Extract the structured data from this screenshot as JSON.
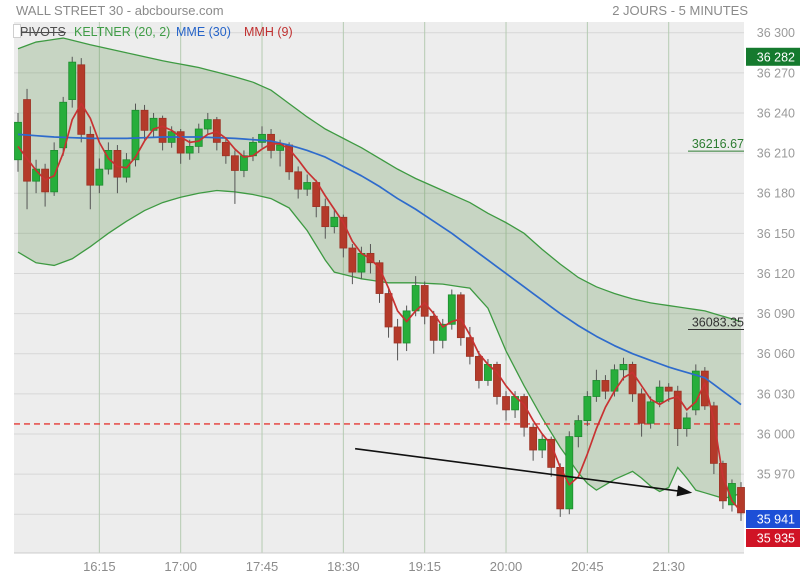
{
  "header": {
    "title": "WALL STREET 30 - abcbourse.com",
    "timeframe": "2 JOURS - 5 MINUTES"
  },
  "indicators": [
    {
      "label": "PIVOTS",
      "color": "#4d4d4d",
      "disabled": true
    },
    {
      "label": "KELTNER (20, 2)",
      "color": "#3f9c46",
      "disabled": false
    },
    {
      "label": "MME (30)",
      "color": "#2664c9",
      "disabled": false
    },
    {
      "label": "MMH (9)",
      "color": "#c03030",
      "disabled": false
    }
  ],
  "chart_data": {
    "type": "candlestick",
    "title": "WALL STREET 30",
    "timeframe_label": "2 JOURS - 5 MINUTES",
    "interval_minutes": 5,
    "ylim": [
      35911,
      36308
    ],
    "y_ticks": [
      36300,
      36270,
      36240,
      36210,
      36180,
      36150,
      36120,
      36090,
      36060,
      36030,
      36000,
      35970
    ],
    "y_tick_labels": [
      "36 300",
      "36 270",
      "36 240",
      "36 210",
      "36 180",
      "36 150",
      "36 120",
      "36 090",
      "36 060",
      "36 030",
      "36 000",
      "35 970"
    ],
    "y_grid_extra": [
      35940
    ],
    "x_ticks": [
      "16:15",
      "17:00",
      "17:45",
      "18:30",
      "19:15",
      "20:00",
      "20:45",
      "21:30"
    ],
    "x_tick_indices": [
      9,
      18,
      27,
      36,
      45,
      54,
      63,
      72
    ],
    "times": [
      "15:30",
      "15:35",
      "15:40",
      "15:45",
      "15:50",
      "15:55",
      "16:00",
      "16:05",
      "16:10",
      "16:15",
      "16:20",
      "16:25",
      "16:30",
      "16:35",
      "16:40",
      "16:45",
      "16:50",
      "16:55",
      "17:00",
      "17:05",
      "17:10",
      "17:15",
      "17:20",
      "17:25",
      "17:30",
      "17:35",
      "17:40",
      "17:45",
      "17:50",
      "17:55",
      "18:00",
      "18:05",
      "18:10",
      "18:15",
      "18:20",
      "18:25",
      "18:30",
      "18:35",
      "18:40",
      "18:45",
      "18:50",
      "18:55",
      "19:00",
      "19:05",
      "19:10",
      "19:15",
      "19:20",
      "19:25",
      "19:30",
      "19:35",
      "19:40",
      "19:45",
      "19:50",
      "19:55",
      "20:00",
      "20:05",
      "20:10",
      "20:15",
      "20:20",
      "20:25",
      "20:30",
      "20:35",
      "20:40",
      "20:45",
      "20:50",
      "20:55",
      "21:00",
      "21:05",
      "21:10",
      "21:15",
      "21:20",
      "21:25",
      "21:30",
      "21:35",
      "21:40",
      "21:45",
      "21:50",
      "21:55",
      "22:00",
      "22:05",
      "22:10"
    ],
    "candles": [
      [
        36205,
        36240,
        36196,
        36233
      ],
      [
        36250,
        36258,
        36168,
        36189
      ],
      [
        36189,
        36205,
        36180,
        36198
      ],
      [
        36198,
        36202,
        36170,
        36181
      ],
      [
        36181,
        36218,
        36178,
        36212
      ],
      [
        36214,
        36252,
        36208,
        36248
      ],
      [
        36250,
        36282,
        36244,
        36278
      ],
      [
        36276,
        36281,
        36218,
        36224
      ],
      [
        36224,
        36230,
        36168,
        36186
      ],
      [
        36186,
        36206,
        36180,
        36198
      ],
      [
        36198,
        36218,
        36194,
        36212
      ],
      [
        36212,
        36216,
        36180,
        36192
      ],
      [
        36192,
        36210,
        36188,
        36205
      ],
      [
        36205,
        36247,
        36200,
        36242
      ],
      [
        36242,
        36246,
        36220,
        36227
      ],
      [
        36227,
        36240,
        36222,
        36236
      ],
      [
        36236,
        36238,
        36212,
        36218
      ],
      [
        36218,
        36230,
        36214,
        36226
      ],
      [
        36226,
        36228,
        36202,
        36210
      ],
      [
        36210,
        36220,
        36205,
        36215
      ],
      [
        36215,
        36232,
        36210,
        36228
      ],
      [
        36228,
        36240,
        36224,
        36235
      ],
      [
        36235,
        36237,
        36212,
        36218
      ],
      [
        36218,
        36222,
        36202,
        36208
      ],
      [
        36208,
        36212,
        36172,
        36197
      ],
      [
        36197,
        36212,
        36192,
        36208
      ],
      [
        36208,
        36222,
        36204,
        36218
      ],
      [
        36218,
        36230,
        36214,
        36224
      ],
      [
        36224,
        36228,
        36206,
        36212
      ],
      [
        36212,
        36220,
        36200,
        36216
      ],
      [
        36216,
        36218,
        36190,
        36196
      ],
      [
        36196,
        36200,
        36176,
        36183
      ],
      [
        36183,
        36194,
        36178,
        36188
      ],
      [
        36188,
        36190,
        36162,
        36170
      ],
      [
        36170,
        36176,
        36146,
        36155
      ],
      [
        36155,
        36168,
        36150,
        36162
      ],
      [
        36162,
        36164,
        36132,
        36139
      ],
      [
        36139,
        36142,
        36112,
        36121
      ],
      [
        36121,
        36140,
        36116,
        36135
      ],
      [
        36135,
        36142,
        36120,
        36128
      ],
      [
        36128,
        36130,
        36098,
        36105
      ],
      [
        36105,
        36110,
        36072,
        36080
      ],
      [
        36080,
        36086,
        36055,
        36068
      ],
      [
        36068,
        36096,
        36062,
        36092
      ],
      [
        36092,
        36118,
        36088,
        36111
      ],
      [
        36111,
        36114,
        36082,
        36088
      ],
      [
        36088,
        36092,
        36060,
        36070
      ],
      [
        36070,
        36086,
        36064,
        36082
      ],
      [
        36082,
        36108,
        36078,
        36104
      ],
      [
        36104,
        36106,
        36066,
        36072
      ],
      [
        36072,
        36080,
        36052,
        36058
      ],
      [
        36058,
        36062,
        36034,
        36040
      ],
      [
        36040,
        36056,
        36036,
        36052
      ],
      [
        36052,
        36054,
        36022,
        36028
      ],
      [
        36028,
        36032,
        36010,
        36018
      ],
      [
        36018,
        36032,
        36012,
        36028
      ],
      [
        36028,
        36030,
        35998,
        36005
      ],
      [
        36005,
        36008,
        35980,
        35988
      ],
      [
        35988,
        36000,
        35982,
        35996
      ],
      [
        35996,
        35998,
        35968,
        35975
      ],
      [
        35975,
        35978,
        35938,
        35944
      ],
      [
        35944,
        36002,
        35940,
        35998
      ],
      [
        35998,
        36014,
        35990,
        36010
      ],
      [
        36010,
        36032,
        36006,
        36028
      ],
      [
        36028,
        36048,
        36024,
        36040
      ],
      [
        36040,
        36044,
        36026,
        36032
      ],
      [
        36032,
        36052,
        36028,
        36048
      ],
      [
        36048,
        36057,
        36040,
        36052
      ],
      [
        36052,
        36054,
        36024,
        36030
      ],
      [
        36030,
        36034,
        35998,
        36008
      ],
      [
        36008,
        36028,
        36004,
        36024
      ],
      [
        36024,
        36040,
        36020,
        36035
      ],
      [
        36035,
        36038,
        36024,
        36032
      ],
      [
        36032,
        36036,
        35991,
        36004
      ],
      [
        36004,
        36016,
        35998,
        36012
      ],
      [
        36018,
        36052,
        36014,
        36047
      ],
      [
        36047,
        36050,
        36018,
        36021
      ],
      [
        36021,
        36024,
        35970,
        35978
      ],
      [
        35978,
        35980,
        35944,
        35950
      ],
      [
        35947,
        35966,
        35942,
        35963
      ],
      [
        35960,
        35964,
        35935,
        35941
      ]
    ],
    "mme30_anchors": [
      [
        0,
        36224
      ],
      [
        4,
        36222
      ],
      [
        8,
        36221
      ],
      [
        12,
        36221
      ],
      [
        16,
        36222
      ],
      [
        20,
        36222
      ],
      [
        24,
        36221
      ],
      [
        28,
        36219
      ],
      [
        30,
        36216
      ],
      [
        32,
        36212
      ],
      [
        34,
        36207
      ],
      [
        36,
        36200
      ],
      [
        38,
        36193
      ],
      [
        40,
        36185
      ],
      [
        42,
        36176
      ],
      [
        44,
        36168
      ],
      [
        46,
        36159
      ],
      [
        48,
        36150
      ],
      [
        50,
        36140
      ],
      [
        52,
        36130
      ],
      [
        54,
        36120
      ],
      [
        56,
        36110
      ],
      [
        58,
        36100
      ],
      [
        60,
        36090
      ],
      [
        62,
        36081
      ],
      [
        64,
        36073
      ],
      [
        66,
        36066
      ],
      [
        68,
        36060
      ],
      [
        70,
        36055
      ],
      [
        72,
        36050
      ],
      [
        74,
        36046
      ],
      [
        76,
        36042
      ],
      [
        78,
        36032
      ],
      [
        80,
        36022
      ]
    ],
    "mmh9": [
      36215,
      36206,
      36197,
      36190,
      36193,
      36210,
      36235,
      36247,
      36236,
      36218,
      36206,
      36200,
      36199,
      36207,
      36219,
      36228,
      36230,
      36227,
      36222,
      36218,
      36219,
      36224,
      36226,
      36221,
      36213,
      36207,
      36208,
      36213,
      36217,
      36217,
      36213,
      36205,
      36196,
      36189,
      36178,
      36168,
      36158,
      36144,
      36135,
      36131,
      36124,
      36109,
      36092,
      36084,
      36092,
      36098,
      36090,
      36080,
      36084,
      36086,
      36074,
      36060,
      36052,
      36046,
      36036,
      36028,
      36022,
      36010,
      36000,
      35992,
      35975,
      35962,
      35968,
      35985,
      36004,
      36020,
      36032,
      36042,
      36046,
      36036,
      36026,
      36022,
      36026,
      36028,
      36018,
      36024,
      36038,
      36010,
      35968,
      35950,
      35942
    ],
    "keltner_upper_anchors": [
      [
        0,
        36288
      ],
      [
        2,
        36293
      ],
      [
        5,
        36296
      ],
      [
        8,
        36291
      ],
      [
        12,
        36285
      ],
      [
        16,
        36279
      ],
      [
        20,
        36274
      ],
      [
        24,
        36267
      ],
      [
        26,
        36263
      ],
      [
        28,
        36257
      ],
      [
        30,
        36247
      ],
      [
        32,
        36237
      ],
      [
        34,
        36228
      ],
      [
        36,
        36221
      ],
      [
        38,
        36214
      ],
      [
        40,
        36206
      ],
      [
        42,
        36198
      ],
      [
        44,
        36191
      ],
      [
        46,
        36185
      ],
      [
        48,
        36179
      ],
      [
        50,
        36173
      ],
      [
        52,
        36165
      ],
      [
        54,
        36158
      ],
      [
        56,
        36150
      ],
      [
        58,
        36138
      ],
      [
        60,
        36127
      ],
      [
        62,
        36117
      ],
      [
        64,
        36110
      ],
      [
        66,
        36105
      ],
      [
        68,
        36101
      ],
      [
        70,
        36098
      ],
      [
        72,
        36096
      ],
      [
        74,
        36094
      ],
      [
        76,
        36092
      ],
      [
        78,
        36088
      ],
      [
        80,
        36084
      ]
    ],
    "keltner_lower_anchors": [
      [
        0,
        36136
      ],
      [
        2,
        36128
      ],
      [
        4,
        36126
      ],
      [
        6,
        36131
      ],
      [
        8,
        36140
      ],
      [
        10,
        36150
      ],
      [
        12,
        36159
      ],
      [
        14,
        36167
      ],
      [
        16,
        36173
      ],
      [
        18,
        36177
      ],
      [
        20,
        36180
      ],
      [
        22,
        36182
      ],
      [
        24,
        36181
      ],
      [
        26,
        36179
      ],
      [
        28,
        36176
      ],
      [
        30,
        36169
      ],
      [
        32,
        36152
      ],
      [
        34,
        36130
      ],
      [
        35,
        36121
      ],
      [
        38,
        36116
      ],
      [
        41,
        36113
      ],
      [
        44,
        36113
      ],
      [
        47,
        36112
      ],
      [
        50,
        36109
      ],
      [
        52,
        36094
      ],
      [
        54,
        36062
      ],
      [
        56,
        36036
      ],
      [
        58,
        36012
      ],
      [
        60,
        35990
      ],
      [
        62,
        35971
      ],
      [
        63,
        35963
      ],
      [
        64,
        35958
      ],
      [
        66,
        35966
      ],
      [
        68,
        35972
      ],
      [
        69,
        35967
      ],
      [
        70,
        35961
      ],
      [
        71,
        35957
      ],
      [
        72,
        35960
      ],
      [
        73,
        35975
      ],
      [
        74,
        35967
      ],
      [
        75,
        35958
      ],
      [
        76,
        35956
      ],
      [
        77,
        35954
      ],
      [
        78,
        35952
      ],
      [
        79,
        35953
      ],
      [
        80,
        35956
      ]
    ],
    "dashed_level": 36007.5,
    "level_labels": [
      {
        "text": "36216.67",
        "value": 36216.67,
        "color": "#2e7d32"
      },
      {
        "text": "36083.35",
        "value": 36083.35,
        "color": "#333333"
      }
    ],
    "badges": [
      {
        "label": "36 282",
        "value": 36282,
        "color": "#157a2e",
        "kind": "high"
      },
      {
        "label": "35 941",
        "value": 35941,
        "color": "#1d4fd7",
        "kind": "last"
      },
      {
        "label": "35 935",
        "value": 35935,
        "color": "#d01325",
        "kind": "low"
      }
    ],
    "arrow": {
      "x1": 37.3,
      "y1": 35989,
      "x2": 74.6,
      "y2": 35956
    },
    "colors": {
      "plot_bg": "#ededed",
      "grid_h": "#d7d7d7",
      "grid_v": "#b5cbb2",
      "band_fill": "rgba(100,150,85,0.28)",
      "band_edge": "#3e9a42",
      "candle_up": "#27ae3b",
      "candle_up_edge": "#1e8c2f",
      "candle_down": "#b43a2a",
      "candle_down_edge": "#9c3325",
      "wick": "#555555",
      "mme30": "#2e6bcc",
      "mmh9": "#c83232",
      "dashed": "#e53935",
      "axis_text": "#9a9a9a",
      "x_text": "#8c8c8c",
      "arrow": "#111111"
    },
    "legend_position": "top-left-inside",
    "grid": true
  }
}
